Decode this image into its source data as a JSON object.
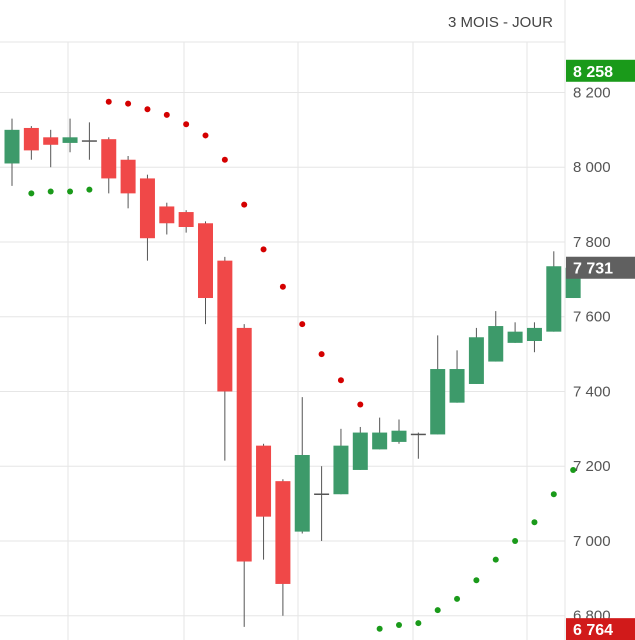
{
  "header": {
    "period": "3 MOIS - JOUR"
  },
  "chart_data": {
    "type": "candlestick",
    "ylim": [
      6735,
      8335
    ],
    "y_ticks": [
      {
        "value": 8200,
        "label": "8 200"
      },
      {
        "value": 8000,
        "label": "8 000"
      },
      {
        "value": 7800,
        "label": "7 800"
      },
      {
        "value": 7600,
        "label": "7 600"
      },
      {
        "value": 7400,
        "label": "7 400"
      },
      {
        "value": 7200,
        "label": "7 200"
      },
      {
        "value": 7000,
        "label": "7 000"
      },
      {
        "value": 6800,
        "label": "6 800"
      }
    ],
    "price_tags": [
      {
        "name": "high",
        "value": 8258,
        "label": "8 258",
        "color": "#1a9a1a"
      },
      {
        "name": "last",
        "value": 7731,
        "label": "7 731",
        "color": "#606060"
      },
      {
        "name": "low",
        "value": 6764,
        "label": "6 764",
        "color": "#d11a1a"
      }
    ],
    "up_color": "#3d9a6a",
    "down_color": "#f04848",
    "sar_bear_color": "#d40000",
    "sar_bull_color": "#1a9a1a",
    "candles": [
      {
        "o": 8010,
        "h": 8130,
        "l": 7950,
        "c": 8100,
        "s": null
      },
      {
        "o": 8105,
        "h": 8110,
        "l": 8020,
        "c": 8045,
        "s": 7930
      },
      {
        "o": 8080,
        "h": 8100,
        "l": 8000,
        "c": 8060,
        "s": 7935
      },
      {
        "o": 8065,
        "h": 8130,
        "l": 8040,
        "c": 8080,
        "s": 7935
      },
      {
        "o": 8070,
        "h": 8120,
        "l": 8020,
        "c": 8070,
        "s": 7940
      },
      {
        "o": 8075,
        "h": 8080,
        "l": 7930,
        "c": 7970,
        "s": 8175
      },
      {
        "o": 8020,
        "h": 8030,
        "l": 7890,
        "c": 7930,
        "s": 8170
      },
      {
        "o": 7970,
        "h": 7980,
        "l": 7750,
        "c": 7810,
        "s": 8155
      },
      {
        "o": 7895,
        "h": 7905,
        "l": 7820,
        "c": 7850,
        "s": 8140
      },
      {
        "o": 7880,
        "h": 7885,
        "l": 7825,
        "c": 7840,
        "s": 8115
      },
      {
        "o": 7850,
        "h": 7855,
        "l": 7580,
        "c": 7650,
        "s": 8085
      },
      {
        "o": 7750,
        "h": 7760,
        "l": 7215,
        "c": 7400,
        "s": 8020
      },
      {
        "o": 7570,
        "h": 7580,
        "l": 6770,
        "c": 6945,
        "s": 7900
      },
      {
        "o": 7255,
        "h": 7260,
        "l": 6950,
        "c": 7065,
        "s": 7780
      },
      {
        "o": 7160,
        "h": 7165,
        "l": 6800,
        "c": 6885,
        "s": 7680
      },
      {
        "o": 7025,
        "h": 7385,
        "l": 7020,
        "c": 7230,
        "s": 7580
      },
      {
        "o": 7125,
        "h": 7200,
        "l": 7000,
        "c": 7125,
        "s": 7500
      },
      {
        "o": 7125,
        "h": 7300,
        "l": 7125,
        "c": 7255,
        "s": 7430
      },
      {
        "o": 7190,
        "h": 7305,
        "l": 7190,
        "c": 7290,
        "s": 7365
      },
      {
        "o": 7245,
        "h": 7330,
        "l": 7245,
        "c": 7290,
        "s": 6765
      },
      {
        "o": 7265,
        "h": 7325,
        "l": 7260,
        "c": 7295,
        "s": 6775
      },
      {
        "o": 7285,
        "h": 7290,
        "l": 7220,
        "c": 7285,
        "s": 6780
      },
      {
        "o": 7285,
        "h": 7550,
        "l": 7285,
        "c": 7460,
        "s": 6815
      },
      {
        "o": 7370,
        "h": 7510,
        "l": 7370,
        "c": 7460,
        "s": 6845
      },
      {
        "o": 7420,
        "h": 7570,
        "l": 7420,
        "c": 7545,
        "s": 6895
      },
      {
        "o": 7480,
        "h": 7615,
        "l": 7480,
        "c": 7575,
        "s": 6950
      },
      {
        "o": 7530,
        "h": 7585,
        "l": 7530,
        "c": 7560,
        "s": 7000
      },
      {
        "o": 7535,
        "h": 7585,
        "l": 7505,
        "c": 7570,
        "s": 7050
      },
      {
        "o": 7560,
        "h": 7775,
        "l": 7560,
        "c": 7735,
        "s": 7125
      },
      {
        "o": 7650,
        "h": 7745,
        "l": 7650,
        "c": 7731,
        "s": 7190
      }
    ]
  }
}
